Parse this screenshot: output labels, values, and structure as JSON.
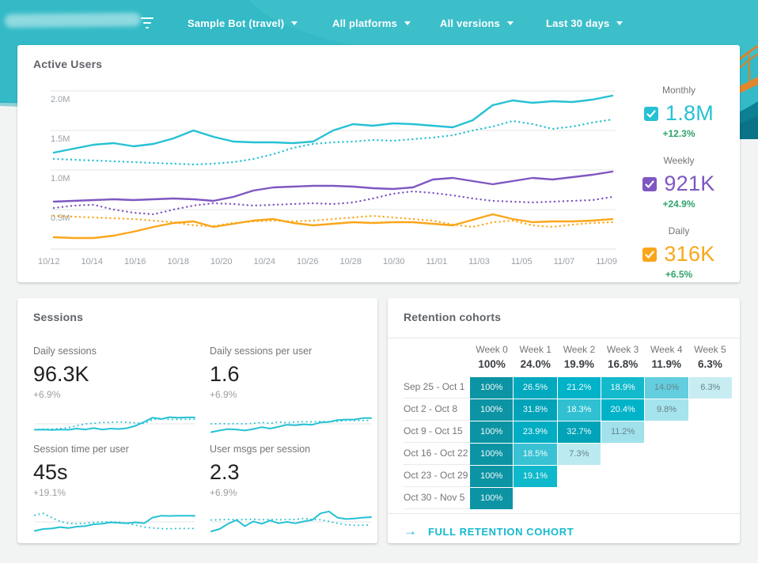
{
  "colors": {
    "topbar_teal": "#33BAC6",
    "line_teal": "#26C1D4",
    "line_purple": "#7E57C2",
    "line_amber": "#FAA61A",
    "positive_green": "#2FA36B",
    "link_teal": "#16B9CE",
    "grid_gray": "#E6E6E6"
  },
  "topbar": {
    "filter_icon": "filter-list-icon",
    "menus": [
      {
        "label": "Sample Bot (travel)"
      },
      {
        "label": "All platforms"
      },
      {
        "label": "All versions"
      },
      {
        "label": "Last 30 days"
      }
    ]
  },
  "active_users": {
    "title": "Active Users",
    "legend": [
      {
        "period": "Monthly",
        "value": "1.8M",
        "delta": "+12.3%",
        "color": "#26C1D4",
        "checked": true
      },
      {
        "period": "Weekly",
        "value": "921K",
        "delta": "+24.9%",
        "color": "#7E57C2",
        "checked": true
      },
      {
        "period": "Daily",
        "value": "316K",
        "delta": "+6.5%",
        "color": "#FAA61A",
        "checked": true
      }
    ]
  },
  "sessions": {
    "title": "Sessions",
    "metrics": [
      {
        "label": "Daily sessions",
        "value": "96.3K",
        "delta": "+6.9%"
      },
      {
        "label": "Daily sessions per user",
        "value": "1.6",
        "delta": "+6.9%"
      },
      {
        "label": "Session time per user",
        "value": "45s",
        "delta": "+19.1%"
      },
      {
        "label": "User msgs per session",
        "value": "2.3",
        "delta": "+6.9%"
      }
    ]
  },
  "retention": {
    "title": "Retention cohorts",
    "week_headers": [
      "Week 0",
      "Week 1",
      "Week 2",
      "Week 3",
      "Week 4",
      "Week 5"
    ],
    "week_averages": [
      "100%",
      "24.0%",
      "19.9%",
      "16.8%",
      "11.9%",
      "6.3%"
    ],
    "rows": [
      {
        "label": "Sep 25 - Oct 1",
        "cells": [
          {
            "v": "100%",
            "bg": "#0C94A4",
            "muted": false
          },
          {
            "v": "26.5%",
            "bg": "#00A9BE",
            "muted": false
          },
          {
            "v": "21.2%",
            "bg": "#00B3C9",
            "muted": false
          },
          {
            "v": "18.9%",
            "bg": "#12BACC",
            "muted": false
          },
          {
            "v": "14.0%",
            "bg": "#63CEDE",
            "muted": true
          },
          {
            "v": "6.3%",
            "bg": "#C7EDF3",
            "muted": true
          }
        ]
      },
      {
        "label": "Oct 2 - Oct 8",
        "cells": [
          {
            "v": "100%",
            "bg": "#0C94A4",
            "muted": false
          },
          {
            "v": "31.8%",
            "bg": "#00A3B7",
            "muted": false
          },
          {
            "v": "18.3%",
            "bg": "#30C0D2",
            "muted": false
          },
          {
            "v": "20.4%",
            "bg": "#00B3C9",
            "muted": false
          },
          {
            "v": "9.8%",
            "bg": "#A5E3ED",
            "muted": true
          },
          null
        ]
      },
      {
        "label": "Oct 9 - Oct 15",
        "cells": [
          {
            "v": "100%",
            "bg": "#0C94A4",
            "muted": false
          },
          {
            "v": "23.9%",
            "bg": "#00ADC2",
            "muted": false
          },
          {
            "v": "32.7%",
            "bg": "#00A3B7",
            "muted": false
          },
          {
            "v": "11.2%",
            "bg": "#A0E1EC",
            "muted": true
          },
          null,
          null
        ]
      },
      {
        "label": "Oct 16 - Oct 22",
        "cells": [
          {
            "v": "100%",
            "bg": "#0C94A4",
            "muted": false
          },
          {
            "v": "18.5%",
            "bg": "#38C2D3",
            "muted": false
          },
          {
            "v": "7.3%",
            "bg": "#BCEAF1",
            "muted": true
          },
          null,
          null,
          null
        ]
      },
      {
        "label": "Oct 23 - Oct 29",
        "cells": [
          {
            "v": "100%",
            "bg": "#0C94A4",
            "muted": false
          },
          {
            "v": "19.1%",
            "bg": "#0FB8CB",
            "muted": false
          },
          null,
          null,
          null,
          null
        ]
      },
      {
        "label": "Oct 30 - Nov 5",
        "cells": [
          {
            "v": "100%",
            "bg": "#0C94A4",
            "muted": false
          },
          null,
          null,
          null,
          null,
          null
        ]
      }
    ],
    "footer_link": "FULL RETENTION COHORT",
    "footer_arrow": "→"
  },
  "chart_data": [
    {
      "type": "line",
      "title": "Active Users",
      "x_ticks": [
        "10/12",
        "10/14",
        "10/16",
        "10/18",
        "10/20",
        "10/24",
        "10/26",
        "10/28",
        "10/30",
        "11/01",
        "11/03",
        "11/05",
        "11/07",
        "11/09"
      ],
      "y_ticks": [
        {
          "value": 2.0,
          "label": "2.0M"
        },
        {
          "value": 1.5,
          "label": "1.5M"
        },
        {
          "value": 1.0,
          "label": "1.0M"
        },
        {
          "value": 0.5,
          "label": "0.5M"
        }
      ],
      "ylim": [
        0,
        2.15
      ],
      "unit": "millions of users",
      "grid": true,
      "legend_position": "right",
      "series": [
        {
          "name": "monthly-current",
          "style": "solid",
          "color": "#26C1D4",
          "values": [
            1.22,
            1.27,
            1.32,
            1.34,
            1.3,
            1.33,
            1.4,
            1.5,
            1.42,
            1.36,
            1.35,
            1.35,
            1.34,
            1.36,
            1.5,
            1.58,
            1.56,
            1.59,
            1.58,
            1.56,
            1.54,
            1.63,
            1.82,
            1.88,
            1.85,
            1.87,
            1.86,
            1.89,
            1.94
          ]
        },
        {
          "name": "monthly-previous",
          "style": "dotted",
          "color": "#26C1D4",
          "values": [
            1.14,
            1.13,
            1.12,
            1.11,
            1.1,
            1.09,
            1.08,
            1.07,
            1.08,
            1.1,
            1.14,
            1.2,
            1.28,
            1.33,
            1.35,
            1.36,
            1.38,
            1.37,
            1.39,
            1.41,
            1.44,
            1.5,
            1.55,
            1.62,
            1.58,
            1.52,
            1.55,
            1.6,
            1.64
          ]
        },
        {
          "name": "weekly-current",
          "style": "solid",
          "color": "#7E57C2",
          "values": [
            0.6,
            0.61,
            0.62,
            0.63,
            0.62,
            0.63,
            0.64,
            0.63,
            0.61,
            0.66,
            0.74,
            0.78,
            0.79,
            0.8,
            0.8,
            0.79,
            0.77,
            0.76,
            0.78,
            0.88,
            0.9,
            0.86,
            0.82,
            0.86,
            0.9,
            0.88,
            0.91,
            0.94,
            0.98
          ]
        },
        {
          "name": "weekly-previous",
          "style": "dotted",
          "color": "#7E57C2",
          "values": [
            0.52,
            0.55,
            0.56,
            0.5,
            0.46,
            0.44,
            0.5,
            0.55,
            0.58,
            0.57,
            0.55,
            0.56,
            0.57,
            0.58,
            0.57,
            0.59,
            0.64,
            0.7,
            0.73,
            0.71,
            0.68,
            0.64,
            0.61,
            0.6,
            0.59,
            0.6,
            0.61,
            0.62,
            0.66
          ]
        },
        {
          "name": "daily-current",
          "style": "solid",
          "color": "#FAA61A",
          "values": [
            0.15,
            0.14,
            0.14,
            0.17,
            0.22,
            0.28,
            0.33,
            0.35,
            0.28,
            0.32,
            0.36,
            0.38,
            0.33,
            0.3,
            0.32,
            0.34,
            0.33,
            0.34,
            0.34,
            0.32,
            0.3,
            0.37,
            0.44,
            0.38,
            0.34,
            0.35,
            0.35,
            0.36,
            0.38
          ]
        },
        {
          "name": "daily-previous",
          "style": "dotted",
          "color": "#FAA61A",
          "values": [
            0.42,
            0.41,
            0.4,
            0.39,
            0.38,
            0.36,
            0.34,
            0.3,
            0.29,
            0.33,
            0.35,
            0.36,
            0.35,
            0.36,
            0.38,
            0.4,
            0.42,
            0.4,
            0.38,
            0.36,
            0.31,
            0.28,
            0.34,
            0.36,
            0.3,
            0.28,
            0.31,
            0.33,
            0.34
          ]
        }
      ]
    },
    {
      "type": "line",
      "title": "Daily sessions trend",
      "grid": false,
      "series": [
        {
          "name": "current",
          "style": "solid",
          "color": "#26C1D4",
          "values": [
            2.5,
            2.6,
            2.4,
            2.6,
            2.5,
            3.0,
            2.6,
            3.2,
            2.6,
            3.0,
            2.8,
            3.2,
            4.2,
            5.8,
            7.6,
            7.0,
            7.8,
            7.6,
            7.7,
            7.7
          ]
        },
        {
          "name": "previous",
          "style": "dotted",
          "color": "#26C1D4",
          "values": [
            2.6,
            2.7,
            2.8,
            3.0,
            3.4,
            4.2,
            5.0,
            5.2,
            5.6,
            5.6,
            5.8,
            5.6,
            5.4,
            5.2,
            6.8,
            7.4,
            6.8,
            6.9,
            6.9,
            6.9
          ]
        }
      ]
    },
    {
      "type": "line",
      "title": "Daily sessions per user trend",
      "grid": false,
      "series": [
        {
          "name": "current",
          "style": "solid",
          "color": "#26C1D4",
          "values": [
            1.5,
            2.2,
            2.8,
            2.6,
            2.2,
            2.8,
            3.6,
            3.0,
            3.8,
            4.6,
            4.4,
            4.8,
            4.6,
            5.6,
            5.8,
            6.6,
            6.8,
            6.8,
            7.4,
            7.4
          ]
        },
        {
          "name": "previous",
          "style": "dotted",
          "color": "#26C1D4",
          "values": [
            5.0,
            5.1,
            5.0,
            5.1,
            5.0,
            5.2,
            5.6,
            5.2,
            5.8,
            5.4,
            5.8,
            5.9,
            5.8,
            6.0,
            5.9,
            6.0,
            6.4,
            6.4,
            6.4,
            6.4
          ]
        }
      ]
    },
    {
      "type": "line",
      "title": "Session time per user trend",
      "grid": false,
      "series": [
        {
          "name": "current",
          "style": "solid",
          "color": "#26C1D4",
          "values": [
            1.2,
            2.0,
            2.2,
            2.8,
            2.4,
            3.0,
            3.2,
            4.0,
            4.2,
            4.8,
            4.6,
            4.4,
            4.8,
            4.4,
            6.8,
            7.6,
            7.5,
            7.6,
            7.6,
            7.6
          ]
        },
        {
          "name": "previous",
          "style": "dotted",
          "color": "#26C1D4",
          "values": [
            7.8,
            8.6,
            6.8,
            5.2,
            4.4,
            4.2,
            4.4,
            4.8,
            5.0,
            5.0,
            4.9,
            4.4,
            3.6,
            2.8,
            2.4,
            2.2,
            2.1,
            2.2,
            2.2,
            2.2
          ]
        }
      ]
    },
    {
      "type": "line",
      "title": "User msgs per session trend",
      "grid": false,
      "series": [
        {
          "name": "current",
          "style": "solid",
          "color": "#26C1D4",
          "values": [
            1.0,
            2.0,
            4.2,
            5.8,
            3.2,
            5.2,
            4.2,
            5.6,
            4.4,
            5.0,
            4.4,
            5.2,
            5.8,
            8.6,
            9.4,
            6.8,
            6.2,
            6.4,
            6.8,
            7.0
          ]
        },
        {
          "name": "previous",
          "style": "dotted",
          "color": "#26C1D4",
          "values": [
            5.8,
            5.9,
            6.0,
            5.9,
            6.0,
            6.1,
            5.9,
            6.0,
            5.9,
            6.0,
            6.0,
            6.5,
            6.0,
            5.9,
            5.2,
            4.4,
            3.8,
            3.6,
            3.6,
            3.7
          ]
        }
      ]
    }
  ]
}
